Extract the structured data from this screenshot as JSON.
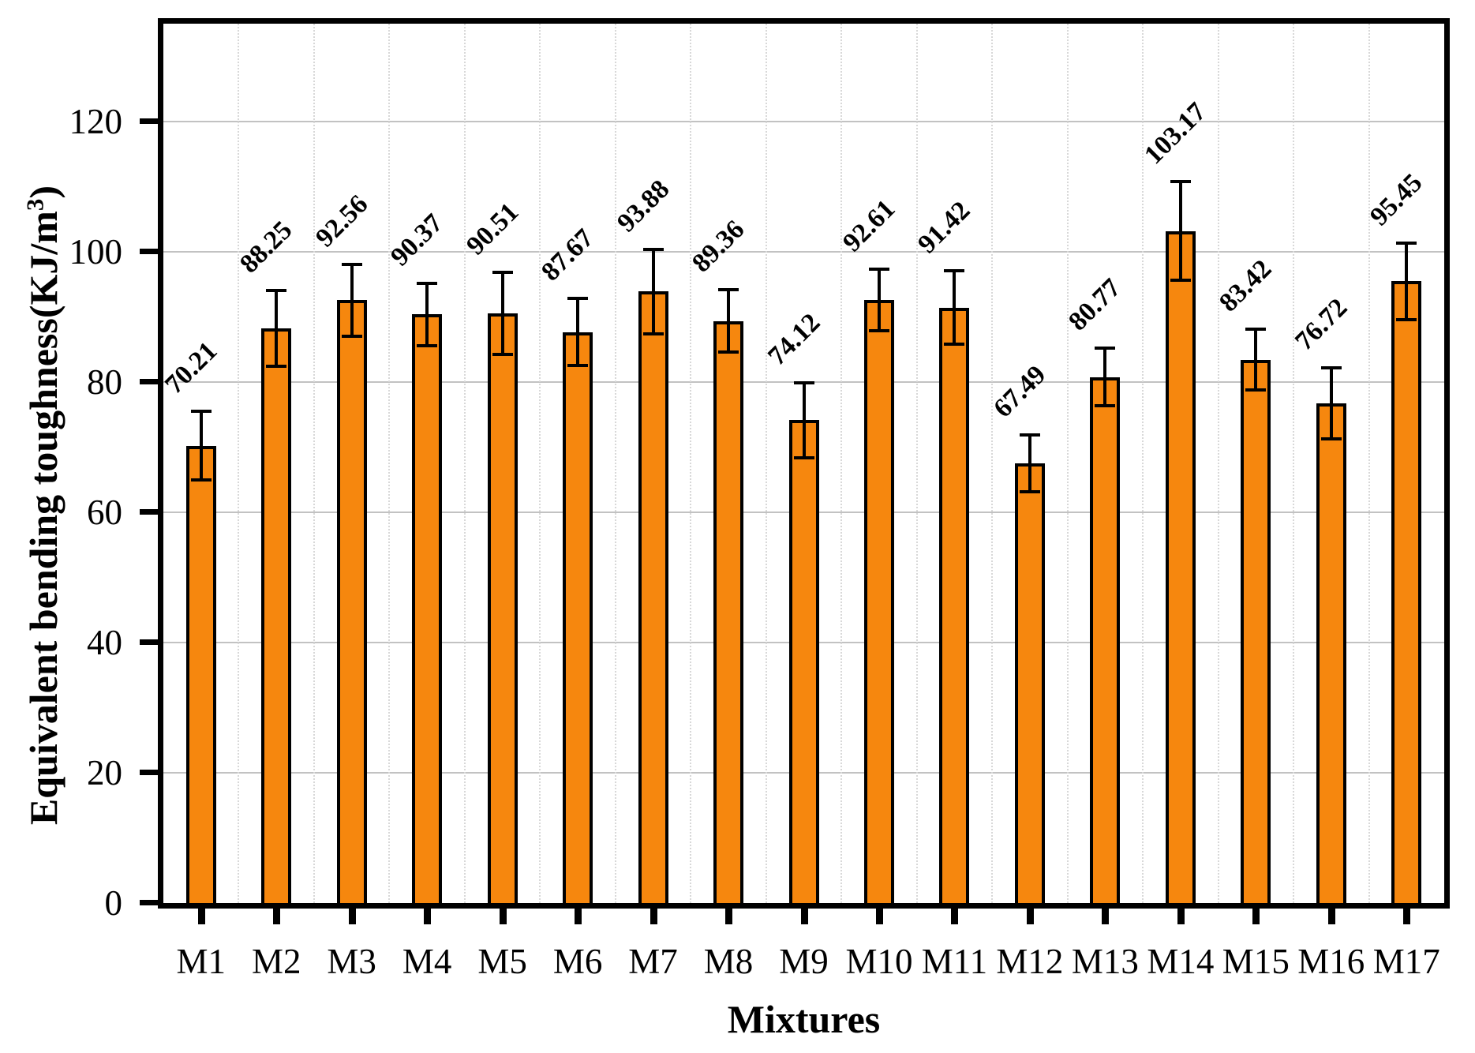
{
  "labels": {
    "xlabel": "Mixtures",
    "ylabel_prefix": "Equivalent bending toughness(KJ/m",
    "ylabel_sup": "3",
    "ylabel_suffix": ")"
  },
  "chart_data": {
    "type": "bar",
    "title": "",
    "xlabel": "Mixtures",
    "ylabel": "Equivalent bending toughness(KJ/m³)",
    "categories": [
      "M1",
      "M2",
      "M3",
      "M4",
      "M5",
      "M6",
      "M7",
      "M8",
      "M9",
      "M10",
      "M11",
      "M12",
      "M13",
      "M14",
      "M15",
      "M16",
      "M17"
    ],
    "values": [
      70.21,
      88.25,
      92.56,
      90.37,
      90.51,
      87.67,
      93.88,
      89.36,
      74.12,
      92.61,
      91.42,
      67.49,
      80.77,
      103.17,
      83.42,
      76.72,
      95.45
    ],
    "errors": [
      5.3,
      5.8,
      5.5,
      4.8,
      6.3,
      5.1,
      6.5,
      4.8,
      5.8,
      4.7,
      5.6,
      4.4,
      4.4,
      7.6,
      4.7,
      5.5,
      5.9
    ],
    "value_label_format_decimals": 2,
    "value_label_rotation_deg": 45,
    "ylim": [
      0,
      135
    ],
    "yticks": [
      0,
      20,
      40,
      60,
      80,
      100,
      120
    ],
    "grid": {
      "horizontal": "solid",
      "vertical": "dotted-between-categories",
      "h_color": "#c2c2c2",
      "v_color": "#d8d8d8"
    },
    "legend": "none",
    "colors": {
      "bar_fill": "#F6870E",
      "bar_edge": "#000000",
      "error_bar": "#000000",
      "axis": "#000000",
      "background": "#ffffff"
    }
  }
}
